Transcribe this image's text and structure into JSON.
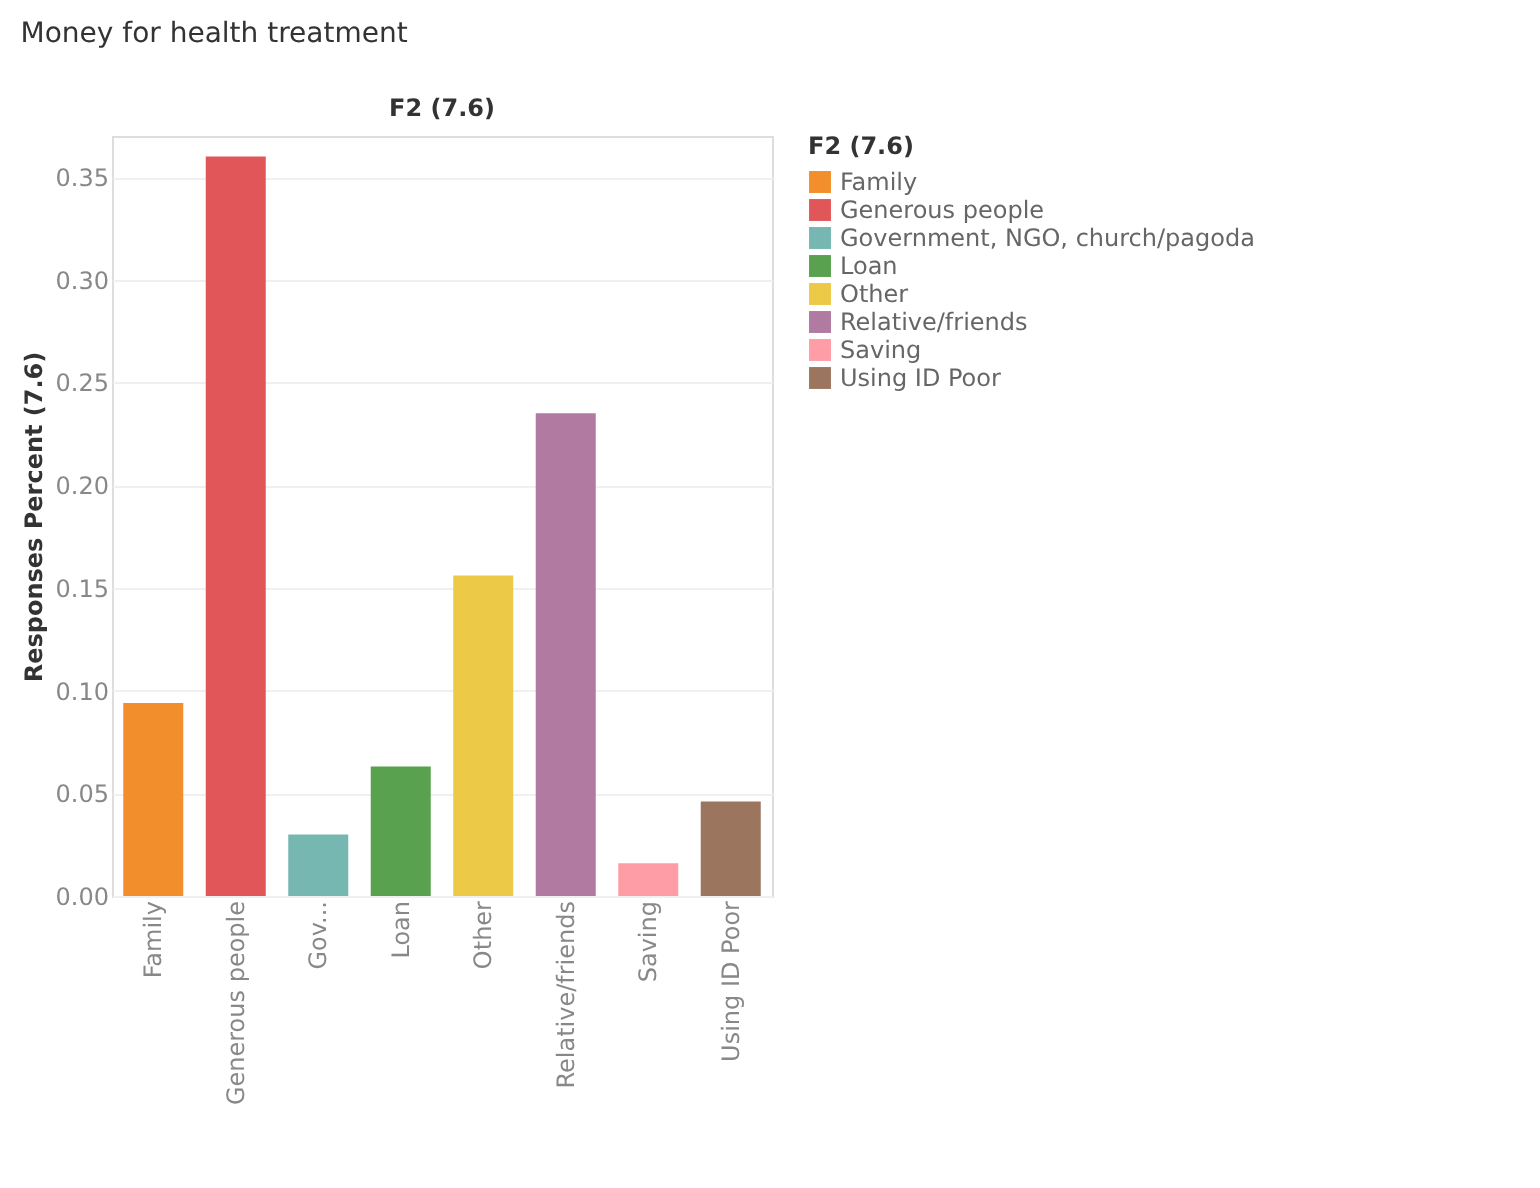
{
  "chart_data": {
    "type": "bar",
    "title": "Money for health treatment",
    "subtitle": "F2 (7.6)",
    "ylabel": "Responses Percent (7.6)",
    "legend_title": "F2 (7.6)",
    "categories": [
      "Family",
      "Generous people",
      "Gov...",
      "Loan",
      "Other",
      "Relative/friends",
      "Saving",
      "Using ID Poor"
    ],
    "series": [
      {
        "name": "Family",
        "color": "#f28e2b",
        "values": [
          0.094,
          null,
          null,
          null,
          null,
          null,
          null,
          null
        ]
      },
      {
        "name": "Generous people",
        "color": "#e15759",
        "values": [
          null,
          0.36,
          null,
          null,
          null,
          null,
          null,
          null
        ]
      },
      {
        "name": "Government, NGO, church/pagoda",
        "color": "#76b7b2",
        "values": [
          null,
          null,
          0.03,
          null,
          null,
          null,
          null,
          null
        ]
      },
      {
        "name": "Loan",
        "color": "#59a14f",
        "values": [
          null,
          null,
          null,
          0.063,
          null,
          null,
          null,
          null
        ]
      },
      {
        "name": "Other",
        "color": "#edc948",
        "values": [
          null,
          null,
          null,
          null,
          0.156,
          null,
          null,
          null
        ]
      },
      {
        "name": "Relative/friends",
        "color": "#b07aa1",
        "values": [
          null,
          null,
          null,
          null,
          null,
          0.235,
          null,
          null
        ]
      },
      {
        "name": "Saving",
        "color": "#ff9da7",
        "values": [
          null,
          null,
          null,
          null,
          null,
          null,
          0.016,
          null
        ]
      },
      {
        "name": "Using ID Poor",
        "color": "#9c755f",
        "values": [
          null,
          null,
          null,
          null,
          null,
          null,
          null,
          0.046
        ]
      }
    ],
    "ylim": [
      0,
      0.37
    ],
    "yticks": [
      {
        "value": 0,
        "label": "0.00"
      },
      {
        "value": 0.05,
        "label": "0.05"
      },
      {
        "value": 0.1,
        "label": "0.10"
      },
      {
        "value": 0.15,
        "label": "0.15"
      },
      {
        "value": 0.2,
        "label": "0.20"
      },
      {
        "value": 0.25,
        "label": "0.25"
      },
      {
        "value": 0.3,
        "label": "0.30"
      },
      {
        "value": 0.35,
        "label": "0.35"
      }
    ],
    "grid": "y",
    "legend": "right"
  }
}
